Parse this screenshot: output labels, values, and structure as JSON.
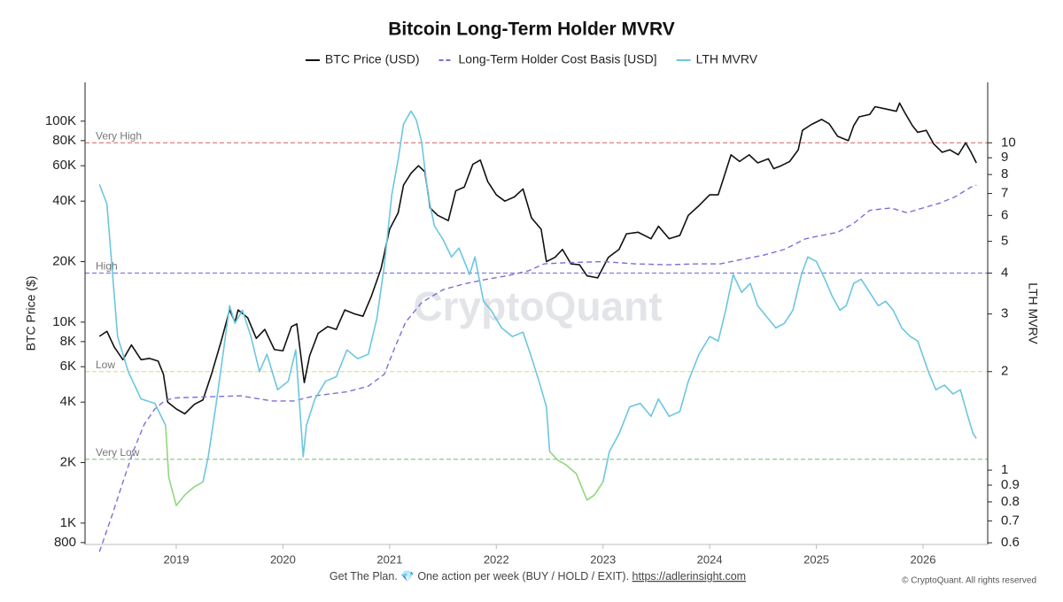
{
  "chart_data": {
    "type": "line",
    "title": "Bitcoin Long-Term Holder MVRV",
    "y_label": "BTC Price ($)",
    "y2_label": "LTH MVRV",
    "watermark": "CryptoQuant",
    "footer_note": "Get The Plan. 💎 One action per week (BUY / HOLD / EXIT).",
    "footer_link": "https://adlerinsight.com",
    "copyright": "© CryptoQuant. All rights reserved",
    "xlim": [
      2018.145,
      2026.606
    ],
    "xticks": [
      2019,
      2020,
      2021,
      2022,
      2023,
      2024,
      2025,
      2026
    ],
    "y_scale": "log",
    "ylim": [
      783,
      156000
    ],
    "yticks": [
      800,
      {
        "value": 1000,
        "label": "1K"
      },
      {
        "value": 2000,
        "label": "2K"
      },
      {
        "value": 4000,
        "label": "4K"
      },
      {
        "value": 6000,
        "label": "6K"
      },
      {
        "value": 8000,
        "label": "8K"
      },
      {
        "value": 10000,
        "label": "10K"
      },
      {
        "value": 20000,
        "label": "20K"
      },
      {
        "value": 40000,
        "label": "40K"
      },
      {
        "value": 60000,
        "label": "60K"
      },
      {
        "value": 80000,
        "label": "80K"
      },
      {
        "value": 100000,
        "label": "100K"
      }
    ],
    "y2_scale": "log",
    "y2lim": [
      0.593,
      15.3
    ],
    "y2ticks": [
      0.6,
      0.7,
      0.8,
      0.9,
      1,
      2,
      3,
      4,
      5,
      6,
      7,
      8,
      9,
      10
    ],
    "grid": false,
    "legend": "top",
    "thresholds": [
      {
        "label": "Very High",
        "value": 10,
        "axis": "y2",
        "color": "#e07070"
      },
      {
        "label": "High",
        "value": 4,
        "axis": "y2",
        "color": "#7a78d6"
      },
      {
        "label": "Low",
        "value": 2,
        "axis": "y2",
        "color": "#e4df8c"
      },
      {
        "label": "Very Low",
        "value": 1.08,
        "axis": "y2",
        "color": "#8ccc8c"
      }
    ],
    "series": [
      {
        "name": "BTC Price (USD)",
        "color": "#111111",
        "axis": "y",
        "style": "solid",
        "x": [
          2018.28,
          2018.35,
          2018.42,
          2018.5,
          2018.58,
          2018.67,
          2018.75,
          2018.83,
          2018.88,
          2018.92,
          2019.0,
          2019.08,
          2019.17,
          2019.25,
          2019.33,
          2019.42,
          2019.5,
          2019.55,
          2019.58,
          2019.67,
          2019.75,
          2019.83,
          2019.92,
          2020.0,
          2020.08,
          2020.13,
          2020.2,
          2020.25,
          2020.33,
          2020.42,
          2020.5,
          2020.58,
          2020.67,
          2020.75,
          2020.83,
          2020.92,
          2021.0,
          2021.08,
          2021.13,
          2021.2,
          2021.27,
          2021.33,
          2021.38,
          2021.45,
          2021.55,
          2021.62,
          2021.7,
          2021.78,
          2021.85,
          2021.92,
          2022.0,
          2022.08,
          2022.17,
          2022.25,
          2022.33,
          2022.42,
          2022.47,
          2022.55,
          2022.62,
          2022.7,
          2022.78,
          2022.85,
          2022.95,
          2023.05,
          2023.15,
          2023.22,
          2023.33,
          2023.45,
          2023.52,
          2023.62,
          2023.72,
          2023.8,
          2023.9,
          2024.0,
          2024.08,
          2024.13,
          2024.2,
          2024.28,
          2024.37,
          2024.45,
          2024.55,
          2024.6,
          2024.67,
          2024.75,
          2024.83,
          2024.87,
          2024.95,
          2025.05,
          2025.12,
          2025.2,
          2025.3,
          2025.35,
          2025.4,
          2025.5,
          2025.55,
          2025.65,
          2025.75,
          2025.78,
          2025.83,
          2025.9,
          2025.95,
          2026.03,
          2026.1,
          2026.18,
          2026.25,
          2026.33,
          2026.4,
          2026.45,
          2026.5
        ],
        "values": [
          8500,
          9000,
          7500,
          6500,
          7700,
          6500,
          6600,
          6400,
          5500,
          4000,
          3700,
          3500,
          3900,
          4100,
          5500,
          8000,
          11500,
          10000,
          11500,
          10500,
          8300,
          9200,
          7300,
          7200,
          9500,
          9800,
          5000,
          6800,
          8800,
          9500,
          9200,
          11500,
          11000,
          10700,
          13500,
          18500,
          29000,
          35000,
          48000,
          55000,
          60000,
          56000,
          37000,
          34000,
          32000,
          45000,
          47000,
          61000,
          64000,
          50000,
          43000,
          40000,
          42000,
          46000,
          33000,
          29000,
          20000,
          21000,
          23000,
          19500,
          19300,
          17000,
          16600,
          21000,
          23000,
          27500,
          28000,
          26000,
          30000,
          26000,
          27000,
          34000,
          38000,
          43000,
          43000,
          52000,
          68000,
          63000,
          68000,
          62000,
          65000,
          58000,
          60000,
          63000,
          72000,
          90000,
          96000,
          102000,
          97000,
          84000,
          80000,
          95000,
          105000,
          108000,
          118000,
          115000,
          112000,
          123000,
          110000,
          95000,
          88000,
          90000,
          77000,
          70000,
          72000,
          68000,
          78000,
          70000,
          62000
        ]
      },
      {
        "name": "Long-Term Holder Cost Basis [USD]",
        "color": "#7a70d8",
        "axis": "y",
        "style": "dashed",
        "x": [
          2018.28,
          2018.4,
          2018.5,
          2018.6,
          2018.7,
          2018.8,
          2018.9,
          2019.0,
          2019.3,
          2019.6,
          2019.9,
          2020.1,
          2020.3,
          2020.6,
          2020.8,
          2020.95,
          2021.05,
          2021.15,
          2021.3,
          2021.5,
          2021.7,
          2021.9,
          2022.1,
          2022.3,
          2022.45,
          2022.7,
          2023.0,
          2023.3,
          2023.6,
          2023.9,
          2024.1,
          2024.3,
          2024.5,
          2024.7,
          2024.9,
          2025.05,
          2025.2,
          2025.35,
          2025.5,
          2025.7,
          2025.85,
          2026.0,
          2026.15,
          2026.3,
          2026.45,
          2026.5
        ],
        "values": [
          720,
          1100,
          1600,
          2300,
          3100,
          3700,
          4100,
          4200,
          4250,
          4300,
          4050,
          4050,
          4300,
          4500,
          4800,
          5500,
          7500,
          10000,
          12500,
          14500,
          15500,
          16300,
          17000,
          18000,
          19500,
          19800,
          20000,
          19500,
          19300,
          19500,
          19500,
          20500,
          21500,
          23000,
          26000,
          27000,
          28000,
          31000,
          36000,
          37000,
          35000,
          37000,
          39000,
          42000,
          47000,
          48000
        ]
      },
      {
        "name": "LTH MVRV",
        "color": "#6cc6e0",
        "below_color": "#92d67f",
        "axis": "y2",
        "style": "solid",
        "x": [
          2018.28,
          2018.35,
          2018.45,
          2018.55,
          2018.67,
          2018.8,
          2018.9,
          2018.93,
          2019.0,
          2019.08,
          2019.17,
          2019.25,
          2019.3,
          2019.37,
          2019.45,
          2019.5,
          2019.55,
          2019.62,
          2019.7,
          2019.78,
          2019.85,
          2019.95,
          2020.05,
          2020.12,
          2020.19,
          2020.22,
          2020.3,
          2020.4,
          2020.5,
          2020.6,
          2020.7,
          2020.8,
          2020.88,
          2020.95,
          2021.02,
          2021.08,
          2021.13,
          2021.2,
          2021.25,
          2021.3,
          2021.36,
          2021.42,
          2021.5,
          2021.58,
          2021.65,
          2021.75,
          2021.8,
          2021.88,
          2021.95,
          2022.05,
          2022.15,
          2022.25,
          2022.32,
          2022.4,
          2022.47,
          2022.5,
          2022.58,
          2022.65,
          2022.75,
          2022.85,
          2022.92,
          2023.0,
          2023.06,
          2023.15,
          2023.25,
          2023.35,
          2023.45,
          2023.52,
          2023.62,
          2023.72,
          2023.8,
          2023.9,
          2024.0,
          2024.08,
          2024.15,
          2024.22,
          2024.3,
          2024.38,
          2024.45,
          2024.55,
          2024.62,
          2024.7,
          2024.78,
          2024.86,
          2024.92,
          2025.0,
          2025.08,
          2025.15,
          2025.22,
          2025.28,
          2025.35,
          2025.42,
          2025.5,
          2025.58,
          2025.65,
          2025.72,
          2025.8,
          2025.88,
          2025.95,
          2026.05,
          2026.12,
          2026.2,
          2026.28,
          2026.35,
          2026.42,
          2026.47,
          2026.5
        ],
        "values": [
          7.46,
          6.51,
          2.56,
          2.0,
          1.65,
          1.6,
          1.37,
          0.95,
          0.78,
          0.84,
          0.89,
          0.92,
          1.1,
          1.56,
          2.41,
          3.18,
          2.81,
          3.08,
          2.56,
          2.0,
          2.26,
          1.76,
          1.87,
          2.33,
          1.1,
          1.37,
          1.65,
          1.87,
          1.93,
          2.33,
          2.19,
          2.26,
          2.9,
          4.21,
          6.93,
          8.89,
          11.4,
          12.5,
          11.75,
          10.06,
          6.93,
          5.57,
          5.07,
          4.48,
          4.77,
          3.96,
          4.48,
          3.28,
          3.08,
          2.72,
          2.56,
          2.64,
          2.26,
          1.87,
          1.56,
          1.14,
          1.07,
          1.04,
          0.975,
          0.81,
          0.84,
          0.92,
          1.14,
          1.29,
          1.56,
          1.6,
          1.46,
          1.65,
          1.46,
          1.51,
          1.87,
          2.26,
          2.56,
          2.48,
          3.08,
          3.96,
          3.49,
          3.72,
          3.18,
          2.9,
          2.72,
          2.81,
          3.08,
          3.96,
          4.48,
          4.34,
          3.83,
          3.39,
          3.08,
          3.18,
          3.72,
          3.83,
          3.49,
          3.18,
          3.28,
          3.08,
          2.72,
          2.56,
          2.48,
          2.0,
          1.76,
          1.82,
          1.71,
          1.76,
          1.46,
          1.29,
          1.25
        ]
      }
    ]
  }
}
